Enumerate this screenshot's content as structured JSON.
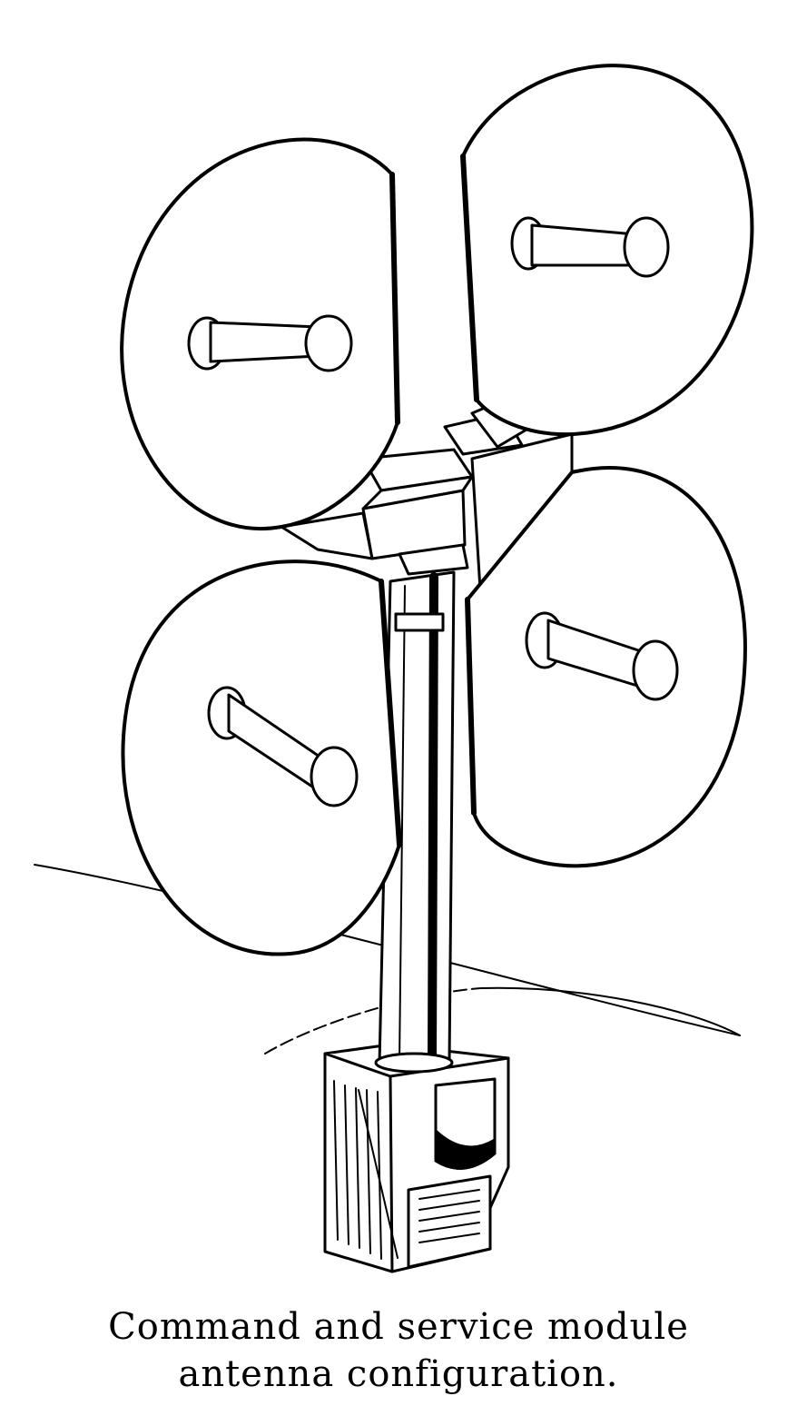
{
  "caption": {
    "line1": "Command and service module",
    "line2": "antenna configuration."
  },
  "colors": {
    "ink": "#000000",
    "paper": "#ffffff"
  }
}
